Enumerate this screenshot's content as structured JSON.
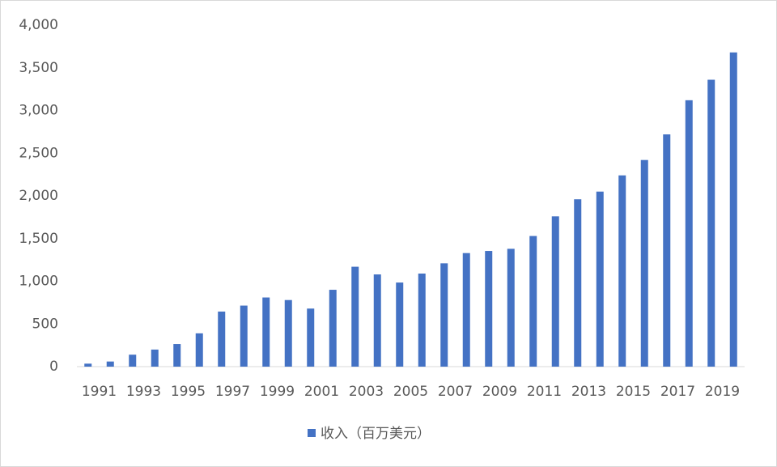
{
  "chart_data": {
    "type": "bar",
    "categories": [
      "1991",
      null,
      "1993",
      null,
      "1995",
      null,
      "1997",
      null,
      "1999",
      null,
      "2001",
      null,
      "2003",
      null,
      "2005",
      null,
      "2007",
      null,
      "2009",
      null,
      "2011",
      null,
      "2013",
      null,
      "2015",
      null,
      "2017",
      null,
      "2019",
      null
    ],
    "series": [
      {
        "name": "收入（百万美元）",
        "color": "#4472c4",
        "values": [
          35,
          60,
          140,
          200,
          265,
          390,
          645,
          715,
          810,
          780,
          680,
          900,
          1170,
          1080,
          985,
          1090,
          1210,
          1330,
          1355,
          1380,
          1530,
          1760,
          1960,
          2050,
          2240,
          2420,
          2720,
          3120,
          3360,
          3680
        ]
      }
    ],
    "ylim": [
      0,
      4000
    ],
    "yticks": [
      0,
      500,
      {
        "value": 1000,
        "label": "1,000"
      },
      {
        "value": 1500,
        "label": "1,500"
      },
      {
        "value": 2000,
        "label": "2,000"
      },
      {
        "value": 2500,
        "label": "2,500"
      },
      {
        "value": 3000,
        "label": "3,000"
      },
      {
        "value": 3500,
        "label": "3,500"
      },
      {
        "value": 4000,
        "label": "4,000"
      }
    ],
    "grid": false,
    "legend": "bottom"
  }
}
